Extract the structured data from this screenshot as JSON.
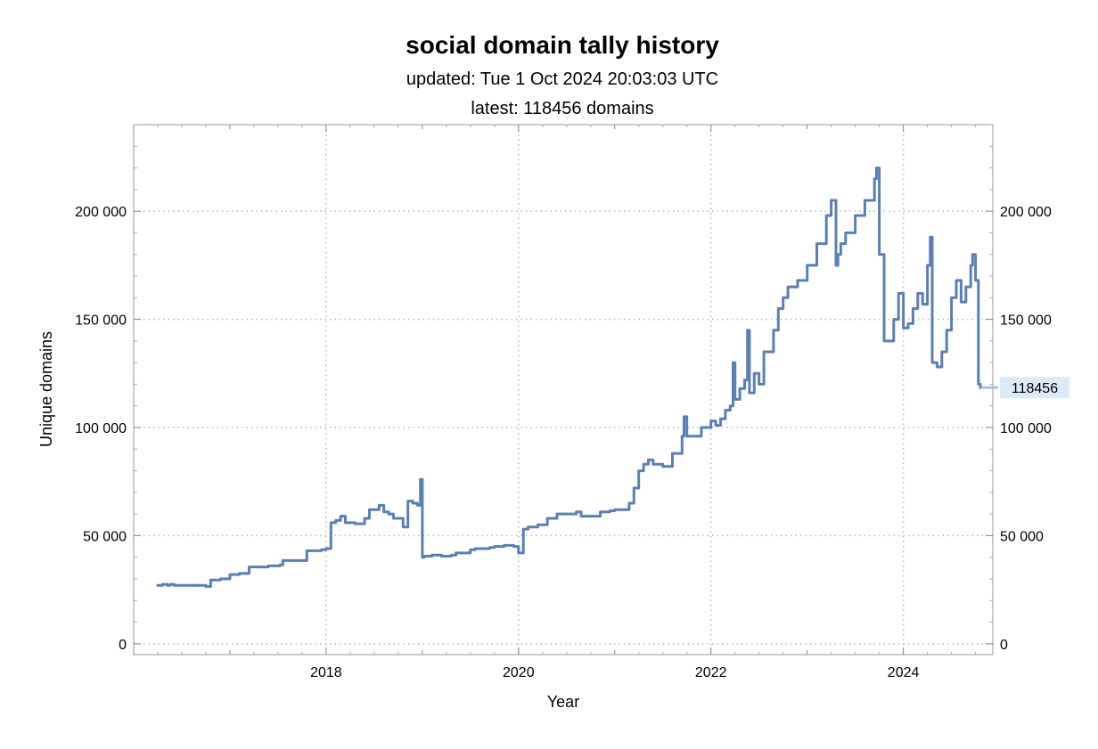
{
  "chart_data": {
    "type": "line",
    "title": "social domain tally history",
    "subtitle_lines": [
      "updated: Tue 1 Oct 2024 20:03:03 UTC",
      "latest: 118456 domains"
    ],
    "xlabel": "Year",
    "ylabel": "Unique domains",
    "x_ticks": [
      2018,
      2020,
      2022,
      2024
    ],
    "y_ticks": [
      0,
      50000,
      100000,
      150000,
      200000
    ],
    "y_tick_labels": [
      "0",
      "50 000",
      "100 000",
      "150 000",
      "200 000"
    ],
    "xlim": [
      2016.0,
      2024.93
    ],
    "ylim": [
      -5000,
      240000
    ],
    "grid": true,
    "line_color": "#5b7fb5",
    "latest_callout": {
      "value": 118456,
      "label": "118456",
      "bg_color": "#dce9f7"
    },
    "series": [
      {
        "x": [
          2016.25,
          2016.3,
          2016.35,
          2016.38,
          2016.42,
          2016.45,
          2016.6,
          2016.75,
          2016.8,
          2016.9,
          2017.0,
          2017.02,
          2017.1,
          2017.2,
          2017.4,
          2017.52,
          2017.55,
          2017.6,
          2017.75,
          2017.8,
          2017.95,
          2018.0,
          2018.05,
          2018.1,
          2018.15,
          2018.2,
          2018.3,
          2018.4,
          2018.45,
          2018.5,
          2018.55,
          2018.6,
          2018.65,
          2018.7,
          2018.8,
          2018.85,
          2018.9,
          2018.95,
          2018.98,
          2019.0,
          2019.02,
          2019.05,
          2019.1,
          2019.2,
          2019.3,
          2019.35,
          2019.5,
          2019.55,
          2019.7,
          2019.75,
          2019.8,
          2019.85,
          2019.95,
          2020.0,
          2020.05,
          2020.1,
          2020.2,
          2020.3,
          2020.4,
          2020.5,
          2020.6,
          2020.65,
          2020.7,
          2020.85,
          2020.95,
          2021.0,
          2021.15,
          2021.2,
          2021.25,
          2021.3,
          2021.35,
          2021.4,
          2021.5,
          2021.6,
          2021.7,
          2021.72,
          2021.75,
          2021.9,
          2022.0,
          2022.05,
          2022.1,
          2022.15,
          2022.2,
          2022.23,
          2022.25,
          2022.3,
          2022.35,
          2022.38,
          2022.4,
          2022.45,
          2022.5,
          2022.55,
          2022.6,
          2022.65,
          2022.7,
          2022.75,
          2022.8,
          2022.9,
          2023.0,
          2023.1,
          2023.2,
          2023.25,
          2023.3,
          2023.32,
          2023.35,
          2023.4,
          2023.5,
          2023.6,
          2023.7,
          2023.72,
          2023.75,
          2023.8,
          2023.9,
          2023.95,
          2024.0,
          2024.05,
          2024.1,
          2024.15,
          2024.2,
          2024.25,
          2024.28,
          2024.3,
          2024.35,
          2024.4,
          2024.45,
          2024.5,
          2024.55,
          2024.6,
          2024.65,
          2024.7,
          2024.72,
          2024.75,
          2024.78,
          2024.8
        ],
        "y": [
          27000,
          27500,
          27000,
          27500,
          27000,
          27000,
          27000,
          26500,
          29500,
          30000,
          32000,
          32000,
          32500,
          35500,
          36000,
          36500,
          38500,
          38500,
          38500,
          43000,
          43500,
          44000,
          56000,
          57000,
          59000,
          56000,
          55500,
          58000,
          62000,
          62000,
          64000,
          61000,
          60000,
          58000,
          54000,
          66000,
          65000,
          64000,
          76000,
          40000,
          40500,
          40500,
          41000,
          40500,
          41000,
          42000,
          43500,
          44000,
          44500,
          45000,
          45000,
          45500,
          45000,
          42000,
          53000,
          54000,
          55000,
          58000,
          60000,
          60000,
          61000,
          59000,
          59000,
          61000,
          61500,
          62000,
          65000,
          72000,
          80000,
          83000,
          85000,
          83000,
          82000,
          88000,
          96000,
          105000,
          96000,
          100000,
          103000,
          101000,
          104000,
          108000,
          110000,
          130000,
          113000,
          118000,
          122000,
          145000,
          116000,
          125000,
          120000,
          135000,
          135000,
          145000,
          155000,
          160000,
          165000,
          168000,
          175000,
          185000,
          198000,
          205000,
          175000,
          180000,
          185000,
          190000,
          198000,
          205000,
          215000,
          220000,
          180000,
          140000,
          150000,
          162000,
          146000,
          148000,
          155000,
          162000,
          157000,
          175000,
          188000,
          130000,
          128000,
          135000,
          145000,
          160000,
          168000,
          158000,
          165000,
          175000,
          180000,
          168000,
          120000,
          118456
        ]
      }
    ]
  }
}
